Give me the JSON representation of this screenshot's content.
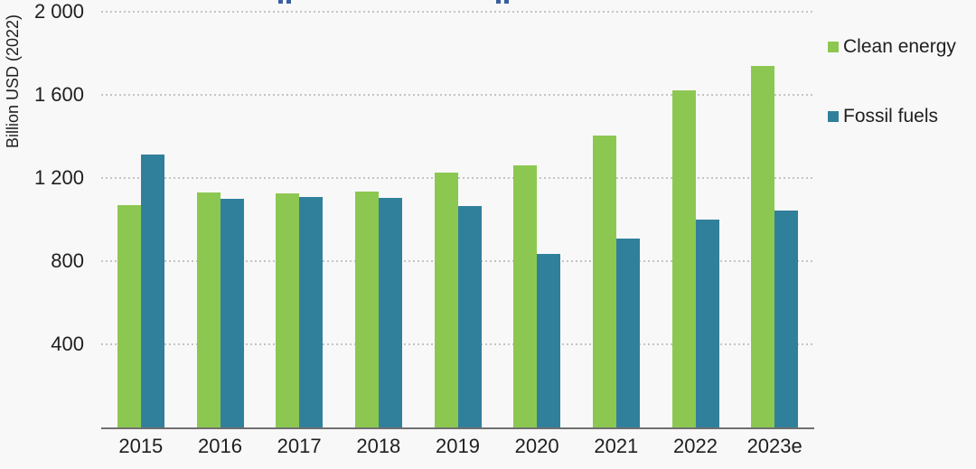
{
  "figure": {
    "background": "#f8f8f8",
    "cropped_title_fragments": {
      "color": "#3a5fa0",
      "positions_x": [
        308,
        549
      ]
    }
  },
  "chart_data": {
    "type": "bar",
    "title": "",
    "xlabel": "",
    "ylabel": "Billion USD (2022)",
    "categories": [
      "2015",
      "2016",
      "2017",
      "2018",
      "2019",
      "2020",
      "2021",
      "2022",
      "2023e"
    ],
    "series": [
      {
        "name": "Clean energy",
        "color": "#8CC851",
        "values": [
          1070,
          1130,
          1125,
          1135,
          1225,
          1260,
          1405,
          1620,
          1740
        ]
      },
      {
        "name": "Fossil fuels",
        "color": "#31809B",
        "values": [
          1315,
          1100,
          1110,
          1105,
          1065,
          835,
          910,
          1000,
          1045
        ]
      }
    ],
    "ylim": [
      0,
      2000
    ],
    "yticks": [
      400,
      800,
      1200,
      1600,
      2000
    ],
    "ytick_labels": [
      "400",
      "800",
      "1 200",
      "1 600",
      "2 000"
    ],
    "grid": "horizontal-dotted",
    "gridline_color": "#c4c4c4",
    "axis_line_color": "#707070",
    "text_color": "#1f1f1f",
    "legend_position": "right-top"
  }
}
